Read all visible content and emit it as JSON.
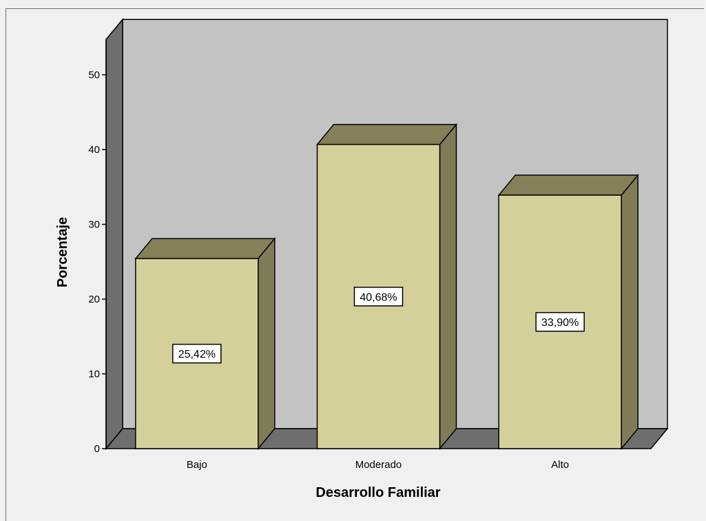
{
  "chart_data": {
    "type": "bar",
    "categories": [
      "Bajo",
      "Moderado",
      "Alto"
    ],
    "values": [
      25.42,
      40.68,
      33.9
    ],
    "data_labels": [
      "25,42%",
      "40,68%",
      "33,90%"
    ],
    "xlabel": "Desarrollo Familiar",
    "ylabel": "Porcentaje",
    "ylim": [
      0,
      55
    ],
    "yticks": [
      0,
      10,
      20,
      30,
      40,
      50
    ],
    "yticklabels": [
      "0",
      "10",
      "20",
      "30",
      "40",
      "50"
    ],
    "grid": false,
    "style": "3d",
    "colors": {
      "bar_front": "#d4d09a",
      "bar_side": "#807c58",
      "bar_top": "#857f5a",
      "back_wall": "#c3c3c3",
      "side_wall": "#6e6e6e",
      "floor": "#6e6e6e",
      "page_bg": "#f0f0f0"
    }
  }
}
